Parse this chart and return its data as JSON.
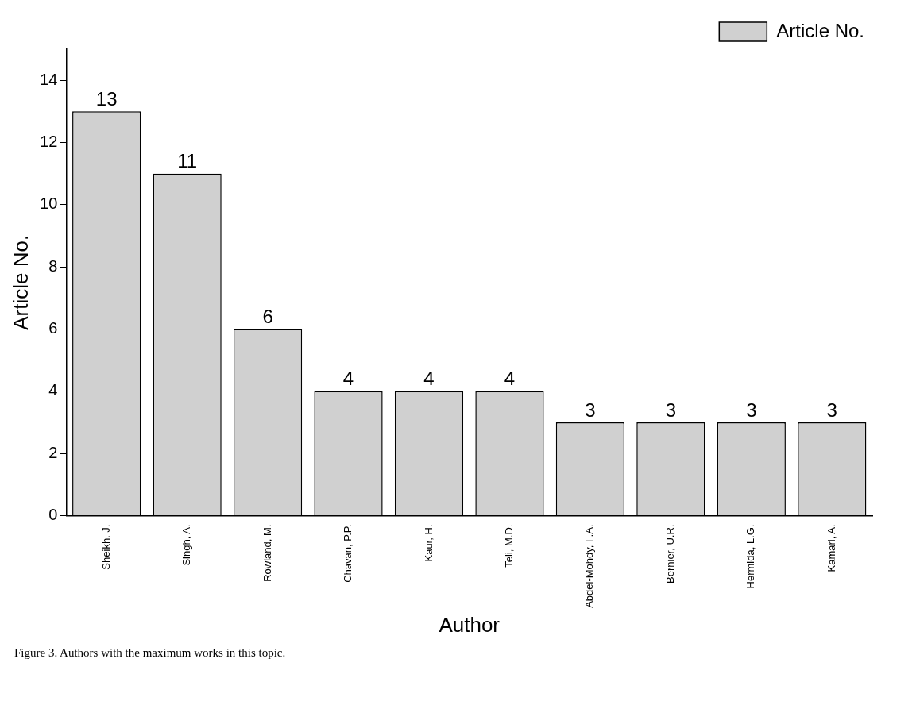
{
  "chart_data": {
    "type": "bar",
    "xlabel": "Author",
    "ylabel": "Article No.",
    "categories": [
      "Sheikh, J.",
      "Singh, A.",
      "Rowland, M.",
      "Chavan, P.P.",
      "Kaur, H.",
      "Teli, M.D.",
      "Abdel-Mohdy, F.A.",
      "Bernier, U.R.",
      "Hermida, L.G.",
      "Kamari, A."
    ],
    "series": [
      {
        "name": "Article No.",
        "color": "#d0d0d0",
        "values": [
          13,
          11,
          6,
          4,
          4,
          4,
          3,
          3,
          3,
          3
        ]
      }
    ],
    "ylim": [
      0,
      15
    ],
    "yticks": [
      0,
      2,
      4,
      6,
      8,
      10,
      12,
      14
    ],
    "data_labels": true,
    "grid": false,
    "legend": "top right",
    "annotations": [
      "Figure 3. Authors with the maximum works in this topic."
    ]
  }
}
